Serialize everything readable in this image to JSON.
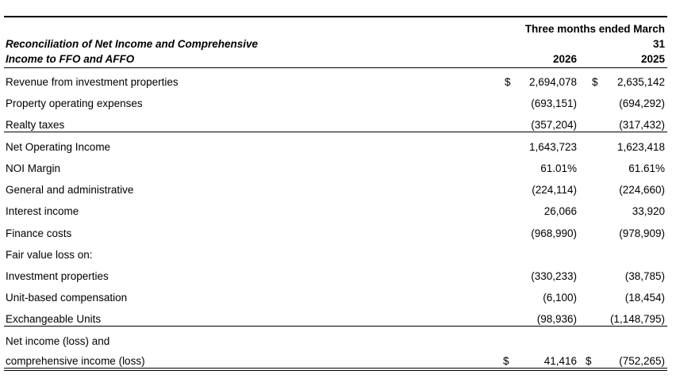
{
  "header": {
    "title_line1": "Reconciliation of Net Income and Comprehensive",
    "title_line2": "Income to FFO and AFFO",
    "period_line1": "Three months ended March",
    "period_line2": "31",
    "year_2026": "2026",
    "year_2025": "2025"
  },
  "rows": [
    {
      "label": "Revenue from investment properties",
      "dollar_2026": "$",
      "v2026": "2,694,078",
      "dollar_2025": "$",
      "v2025": "2,635,142"
    },
    {
      "label": "Property operating expenses",
      "v2026": "(693,151)",
      "v2025": "(694,292)"
    },
    {
      "label": "Realty taxes",
      "v2026": "(357,204)",
      "v2025": "(317,432)"
    },
    {
      "label": "Net Operating Income",
      "v2026": "1,643,723",
      "v2025": "1,623,418"
    },
    {
      "label": "NOI Margin",
      "v2026": "61.01%",
      "v2025": "61.61%"
    },
    {
      "label": "General and administrative",
      "v2026": "(224,114)",
      "v2025": "(224,660)"
    },
    {
      "label": "Interest income",
      "v2026": "26,066",
      "v2025": "33,920"
    },
    {
      "label": "Finance costs",
      "v2026": "(968,990)",
      "v2025": "(978,909)"
    },
    {
      "label": "Fair value loss on:"
    },
    {
      "label": "Investment properties",
      "v2026": "(330,233)",
      "v2025": "(38,785)"
    },
    {
      "label": "Unit-based compensation",
      "v2026": "(6,100)",
      "v2025": "(18,454)"
    },
    {
      "label": "Exchangeable Units",
      "v2026": "(98,936)",
      "v2025": "(1,148,795)"
    },
    {
      "label": "Net income (loss) and"
    },
    {
      "label": "comprehensive income (loss)",
      "dollar_2026": "$",
      "v2026": "41,416",
      "dollar_2025": "$",
      "v2025": "(752,265)"
    }
  ]
}
